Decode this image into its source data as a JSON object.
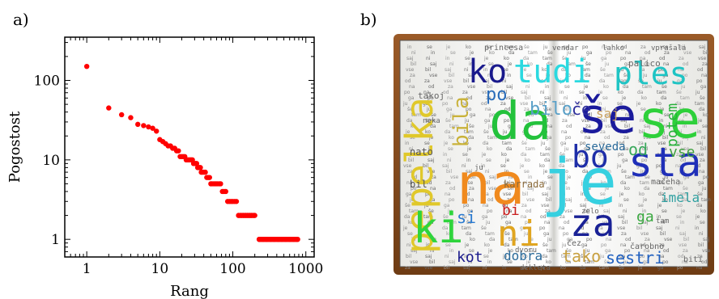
{
  "panels": {
    "a": "a)",
    "b": "b)"
  },
  "chart_data": {
    "type": "scatter",
    "xlabel": "Rang",
    "ylabel": "Pogostost",
    "xscale": "log",
    "yscale": "log",
    "xlim": [
      0.5,
      1300
    ],
    "ylim": [
      0.6,
      350
    ],
    "xticks": [
      1,
      10,
      100,
      1000
    ],
    "xtick_labels": [
      "1",
      "10",
      "100",
      "1000"
    ],
    "yticks": [
      1,
      10,
      100
    ],
    "ytick_labels": [
      "1",
      "10",
      "100"
    ],
    "grid": false,
    "marker_color": "#ff0000",
    "points": [
      [
        1,
        150
      ],
      [
        2,
        45
      ],
      [
        3,
        37
      ],
      [
        4,
        34
      ],
      [
        5,
        28
      ],
      [
        6,
        27
      ],
      [
        7,
        26
      ],
      [
        8,
        25
      ],
      [
        9,
        23
      ],
      [
        10,
        18
      ],
      [
        11,
        17
      ],
      [
        12,
        16
      ],
      [
        13,
        15
      ],
      [
        14,
        15
      ],
      [
        15,
        14
      ],
      [
        16,
        14
      ],
      [
        17,
        13
      ],
      [
        18,
        13
      ],
      [
        19,
        11
      ],
      [
        20,
        11
      ],
      [
        21,
        11
      ],
      [
        22,
        11
      ],
      [
        23,
        10
      ],
      [
        24,
        10
      ],
      [
        25,
        10
      ],
      [
        26,
        10
      ],
      [
        27,
        10
      ],
      [
        28,
        10
      ],
      [
        29,
        9
      ],
      [
        30,
        9
      ],
      [
        31,
        9
      ],
      [
        32,
        9
      ],
      [
        33,
        8
      ],
      [
        34,
        8
      ],
      [
        35,
        8
      ],
      [
        36,
        8
      ],
      [
        37,
        7
      ],
      [
        38,
        7
      ],
      [
        40,
        7
      ],
      [
        42,
        7
      ],
      [
        44,
        6
      ],
      [
        46,
        6
      ],
      [
        48,
        6
      ],
      [
        50,
        5
      ],
      [
        52,
        5
      ],
      [
        55,
        5
      ],
      [
        58,
        5
      ],
      [
        61,
        5
      ],
      [
        65,
        5
      ],
      [
        68,
        5
      ],
      [
        72,
        4
      ],
      [
        76,
        4
      ],
      [
        80,
        4
      ],
      [
        85,
        3
      ],
      [
        90,
        3
      ],
      [
        95,
        3
      ],
      [
        100,
        3
      ],
      [
        106,
        3
      ],
      [
        112,
        3
      ],
      [
        120,
        2
      ],
      [
        130,
        2
      ],
      [
        140,
        2
      ],
      [
        150,
        2
      ],
      [
        160,
        2
      ],
      [
        170,
        2
      ],
      [
        180,
        2
      ],
      [
        195,
        2
      ],
      [
        230,
        1
      ],
      [
        260,
        1
      ],
      [
        290,
        1
      ],
      [
        330,
        1
      ],
      [
        370,
        1
      ],
      [
        420,
        1
      ],
      [
        470,
        1
      ],
      [
        530,
        1
      ],
      [
        600,
        1
      ],
      [
        680,
        1
      ],
      [
        760,
        1
      ]
    ]
  },
  "word_cloud": {
    "words": [
      {
        "text": "ko",
        "color": "#1a1a8c",
        "size": 40
      },
      {
        "text": "tudi",
        "color": "#2bd9e0",
        "size": 40
      },
      {
        "text": "ples",
        "color": "#1fc4c4",
        "size": 38
      },
      {
        "text": "da",
        "color": "#23c23c",
        "size": 64
      },
      {
        "text": "še",
        "color": "#1b1b9c",
        "size": 60
      },
      {
        "text": "se",
        "color": "#2ed03a",
        "size": 64
      },
      {
        "text": "pepelka",
        "color": "#e0c82a",
        "size": 46
      },
      {
        "text": "na",
        "color": "#f08a1e",
        "size": 70
      },
      {
        "text": "je",
        "color": "#36d0e0",
        "size": 78
      },
      {
        "text": "bo",
        "color": "#1e2ea8",
        "size": 38
      },
      {
        "text": "sta",
        "color": "#1f2fb8",
        "size": 50
      },
      {
        "text": "ki",
        "color": "#2fd43c",
        "size": 52
      },
      {
        "text": "ni",
        "color": "#e0a520",
        "size": 44
      },
      {
        "text": "za",
        "color": "#1a2296",
        "size": 46
      },
      {
        "text": "bila",
        "color": "#c9b23a",
        "size": 26
      },
      {
        "text": "po",
        "color": "#2a6dba",
        "size": 22
      },
      {
        "text": "bilo",
        "color": "#5aa0c8",
        "size": 22
      },
      {
        "text": "če",
        "color": "#2d2d9c",
        "size": 20
      },
      {
        "text": "saj",
        "color": "#c8a060",
        "size": 16
      },
      {
        "text": "potem",
        "color": "#27b03a",
        "size": 18
      },
      {
        "text": "od",
        "color": "#3aa85c",
        "size": 20
      },
      {
        "text": "vse",
        "color": "#3fa03f",
        "size": 18
      },
      {
        "text": "seveda",
        "color": "#2a6a9a",
        "size": 14
      },
      {
        "text": "imela",
        "color": "#2fa0a0",
        "size": 16
      },
      {
        "text": "bi",
        "color": "#c81e1e",
        "size": 18
      },
      {
        "text": "si",
        "color": "#2a7ad0",
        "size": 20
      },
      {
        "text": "ga",
        "color": "#3aa840",
        "size": 18
      },
      {
        "text": "kot",
        "color": "#1a1a8c",
        "size": 18
      },
      {
        "text": "dobra",
        "color": "#2a6a9a",
        "size": 16
      },
      {
        "text": "tako",
        "color": "#c8a040",
        "size": 20
      },
      {
        "text": "sestri",
        "color": "#2060c0",
        "size": 20
      },
      {
        "text": "karrada",
        "color": "#8a6a3a",
        "size": 12
      },
      {
        "text": "nato",
        "color": "#555555",
        "size": 12
      },
      {
        "text": "bil",
        "color": "#555555",
        "size": 12
      },
      {
        "text": "palico",
        "color": "#666666",
        "size": 11
      },
      {
        "text": "princesa",
        "color": "#666666",
        "size": 10
      },
      {
        "text": "takoj",
        "color": "#666666",
        "size": 11
      },
      {
        "text": "mačeha",
        "color": "#666666",
        "size": 10
      },
      {
        "text": "čarobno",
        "color": "#666666",
        "size": 10
      },
      {
        "text": "čez",
        "color": "#666666",
        "size": 10
      },
      {
        "text": "biti",
        "color": "#666666",
        "size": 10
      },
      {
        "text": "vendar",
        "color": "#666666",
        "size": 9
      },
      {
        "text": "lahko",
        "color": "#666666",
        "size": 9
      },
      {
        "text": "vprašala",
        "color": "#666666",
        "size": 9
      },
      {
        "text": "dekleta",
        "color": "#666666",
        "size": 9
      },
      {
        "text": "dvoru",
        "color": "#666666",
        "size": 9
      },
      {
        "text": "zelo",
        "color": "#666666",
        "size": 9
      },
      {
        "text": "tam",
        "color": "#666666",
        "size": 9
      },
      {
        "text": "ju",
        "color": "#666666",
        "size": 9
      },
      {
        "text": "neka",
        "color": "#666666",
        "size": 9
      }
    ]
  }
}
